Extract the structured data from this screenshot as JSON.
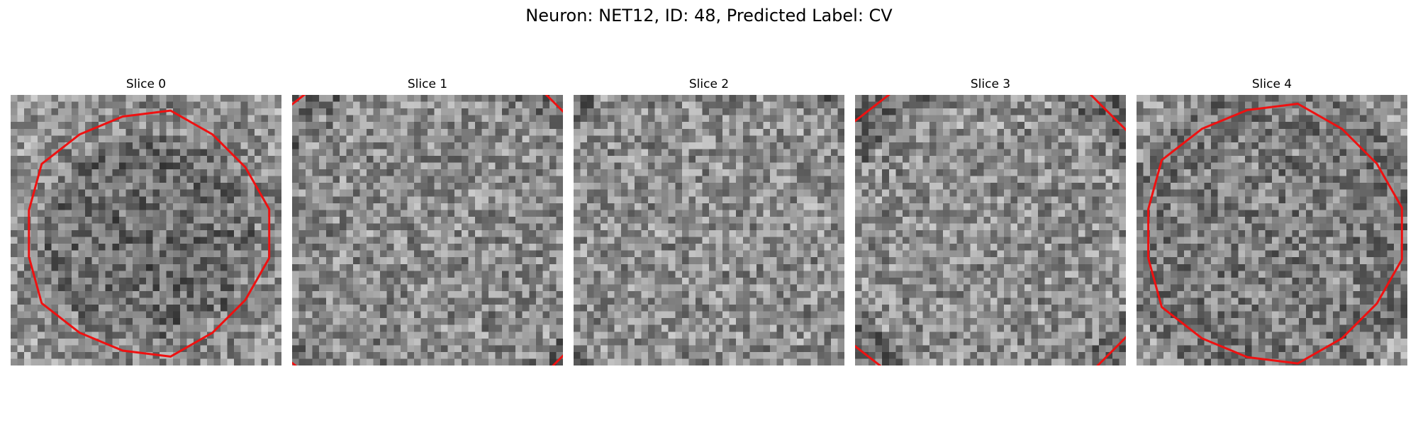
{
  "figure": {
    "title": "Neuron: NET12, ID: 48, Predicted Label: CV",
    "contour_color": "#ee1111"
  },
  "panels": [
    {
      "title": "Slice 0",
      "contour_radius_px": 18,
      "darkness": 0.55,
      "ring_darkness": 0.15
    },
    {
      "title": "Slice 1",
      "contour_radius_px": 28,
      "darkness": 0.15,
      "ring_darkness": 0.45
    },
    {
      "title": "Slice 2",
      "contour_radius_px": 31,
      "darkness": 0.1,
      "ring_darkness": 0.5
    },
    {
      "title": "Slice 3",
      "contour_radius_px": 26,
      "darkness": 0.1,
      "ring_darkness": 0.45
    },
    {
      "title": "Slice 4",
      "contour_radius_px": 19,
      "darkness": 0.35,
      "ring_darkness": 0.35
    }
  ]
}
